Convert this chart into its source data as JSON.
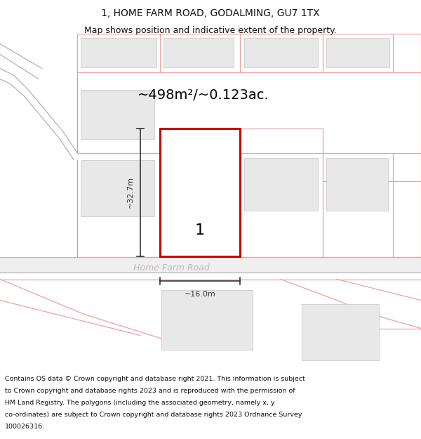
{
  "title": "1, HOME FARM ROAD, GODALMING, GU7 1TX",
  "subtitle": "Map shows position and indicative extent of the property.",
  "area_text": "~498m²/~0.123ac.",
  "dim_height": "~32.7m",
  "dim_width": "~16.0m",
  "plot_label": "1",
  "road_label": "Home Farm Road",
  "footer_lines": [
    "Contains OS data © Crown copyright and database right 2021. This information is subject",
    "to Crown copyright and database rights 2023 and is reproduced with the permission of",
    "HM Land Registry. The polygons (including the associated geometry, namely x, y",
    "co-ordinates) are subject to Crown copyright and database rights 2023 Ordnance Survey",
    "100026316."
  ],
  "bg_color": "#ffffff",
  "map_bg": "#ffffff",
  "plot_outline_color": "#cc0000",
  "building_fill": "#e8e8e8",
  "building_edge": "#cccccc",
  "pink_line_color": "#f0a0a0",
  "gray_line_color": "#aaaaaa",
  "dim_line_color": "#333333",
  "road_text_color": "#bbbbbb",
  "title_color": "#111111",
  "footer_color": "#111111",
  "title_fontsize": 10,
  "subtitle_fontsize": 9,
  "area_fontsize": 14,
  "dim_fontsize": 8,
  "label_fontsize": 16,
  "road_fontsize": 9,
  "footer_fontsize": 6.8
}
